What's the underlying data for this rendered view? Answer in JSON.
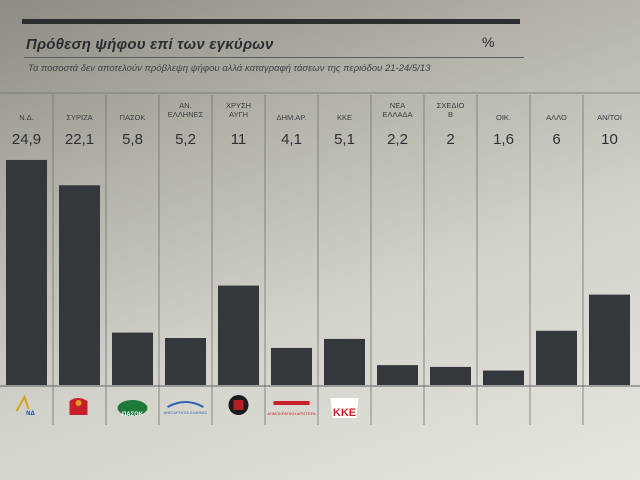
{
  "header": {
    "title": "Πρόθεση ψήφου επί των εγκύρων",
    "unit": "%",
    "subtitle": "Τα ποσοστά δεν αποτελούν πρόβλεψη ψήφου αλλά καταγραφή τάσεων της περιόδου 21-24/5/13"
  },
  "chart_data": {
    "type": "bar",
    "categories": [
      [
        "Ν.Δ."
      ],
      [
        "ΣΥΡΙΖΑ"
      ],
      [
        "ΠΑΣΟΚ"
      ],
      [
        "ΑΝ.",
        "ΕΛΛΗΝΕΣ"
      ],
      [
        "ΧΡΥΣΗ",
        "ΑΥΓΗ"
      ],
      [
        "ΔΗΜ.ΑΡ."
      ],
      [
        "ΚΚΕ"
      ],
      [
        "ΝΕΑ",
        "ΕΛΛΑΔΑ"
      ],
      [
        "ΣΧΕΔΙΟ",
        "Β"
      ],
      [
        "ΟΙΚ."
      ],
      [
        "ΑΛΛΟ"
      ],
      [
        "ΑΝ/ΤΟΙ"
      ]
    ],
    "value_labels": [
      "24,9",
      "22,1",
      "5,8",
      "5,2",
      "11",
      "4,1",
      "5,1",
      "2,2",
      "2",
      "1,6",
      "6",
      "10"
    ],
    "values": [
      24.9,
      22.1,
      5.8,
      5.2,
      11,
      4.1,
      5.1,
      2.2,
      2,
      1.6,
      6,
      10
    ],
    "ylim": [
      0,
      26
    ],
    "bar_color": "#34383d"
  },
  "logos": [
    {
      "text": "ΝΔ",
      "color": "#1a4f9c"
    },
    {
      "text": "",
      "color": "#c8202a"
    },
    {
      "text": "ΠΑΣΟΚ",
      "color": "#1f7a3a"
    },
    {
      "text": "ΑΝΕΞΑΡΤΗΤΟΙ ΕΛΛΗΝΕΣ",
      "color": "#2b63ad"
    },
    {
      "text": "",
      "color": "#b51f24"
    },
    {
      "text": "ΔΗΜΟΚΡΑΤΙΚΗ ΑΡΙΣΤΕΡΑ",
      "color": "#c8202a"
    },
    {
      "text": "ΚΚΕ",
      "color": "#d21f26"
    }
  ]
}
